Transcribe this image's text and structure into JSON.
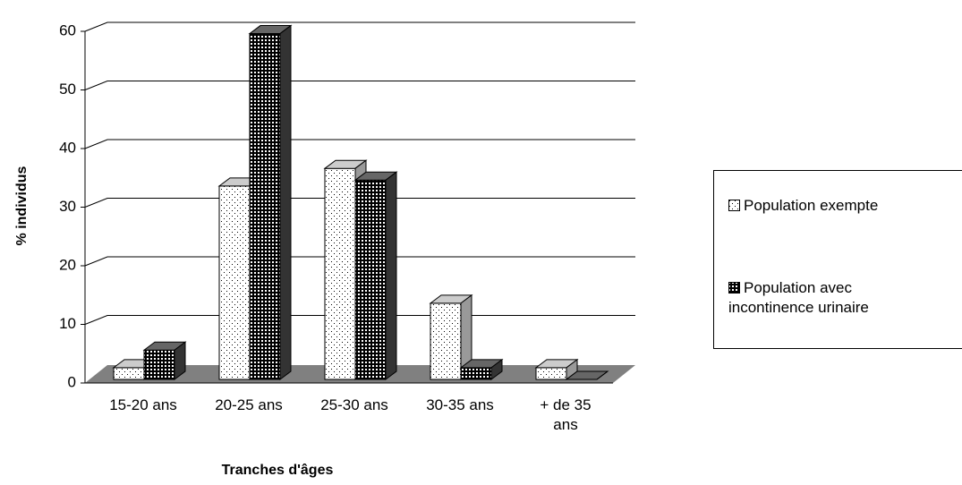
{
  "chart_data": {
    "type": "bar3d",
    "x_label": "Tranches d'âges",
    "y_label": "% individus",
    "categories": [
      "15-20 ans",
      "20-25 ans",
      "25-30 ans",
      "30-35 ans",
      "+ de 35 ans"
    ],
    "series": [
      {
        "name": "Population exempte",
        "color": "#ffffff",
        "values": [
          2,
          33,
          36,
          13,
          2
        ]
      },
      {
        "name": "Population avec incontinence urinaire",
        "color": "#000000",
        "values": [
          5,
          59,
          34,
          2,
          0
        ]
      }
    ],
    "ylim": [
      0,
      60
    ],
    "yticks": [
      0,
      10,
      20,
      30,
      40,
      50,
      60
    ],
    "grid": true,
    "legend": "right"
  }
}
